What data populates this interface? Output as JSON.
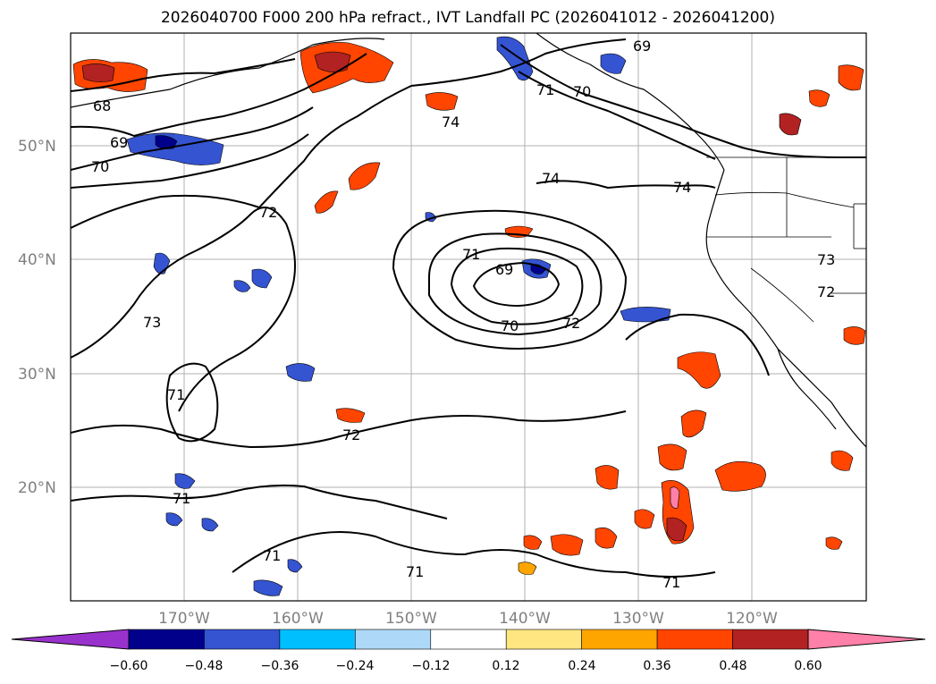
{
  "title": "2026040700 F000 200 hPa refract., IVT Landfall PC (2026041012 - 2026041200)",
  "map": {
    "projection": "PlateCarree",
    "lon_range": [
      -180,
      -110
    ],
    "lat_range": [
      10,
      60
    ],
    "lat_ticks": [
      {
        "value": 50,
        "label": "50°N"
      },
      {
        "value": 40,
        "label": "40°N"
      },
      {
        "value": 30,
        "label": "30°N"
      },
      {
        "value": 20,
        "label": "20°N"
      }
    ],
    "lon_ticks": [
      {
        "value": -170,
        "label": "170°W"
      },
      {
        "value": -160,
        "label": "160°W"
      },
      {
        "value": -150,
        "label": "150°W"
      },
      {
        "value": -140,
        "label": "140°W"
      },
      {
        "value": -130,
        "label": "130°W"
      },
      {
        "value": -120,
        "label": "120°W"
      }
    ],
    "grid": true,
    "contour_labels": [
      "69",
      "68",
      "69",
      "70",
      "70",
      "71",
      "74",
      "74",
      "74",
      "72",
      "73",
      "71",
      "71",
      "69",
      "70",
      "72",
      "73",
      "72",
      "72",
      "71",
      "71",
      "71",
      "71"
    ]
  },
  "colorbar": {
    "extend": "both",
    "colors": [
      "#9932cc",
      "#00008b",
      "#3454d1",
      "#00bfff",
      "#add8f7",
      "#ffffff",
      "#ffe680",
      "#ffa500",
      "#ff4500",
      "#b22222",
      "#ff80a8"
    ],
    "tick_labels": [
      "−0.60",
      "−0.48",
      "−0.36",
      "−0.24",
      "−0.12",
      "0.12",
      "0.24",
      "0.36",
      "0.48",
      "0.60"
    ]
  },
  "legend_icons": {
    "left_arrow": "triangle-left-icon",
    "right_arrow": "triangle-right-icon"
  }
}
